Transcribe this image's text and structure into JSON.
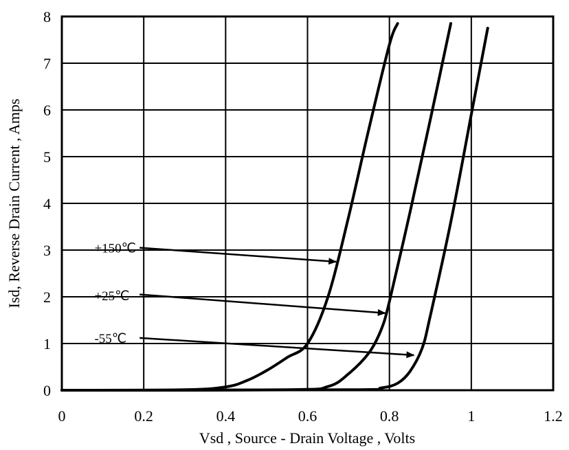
{
  "chart_data": {
    "type": "line",
    "title": "",
    "xlabel": "Vsd , Source - Drain Voltage , Volts",
    "ylabel": "Isd, Reverse Drain Current , Amps",
    "xlim": [
      0,
      1.2
    ],
    "ylim": [
      0,
      8
    ],
    "grid": true,
    "x_ticks": [
      "0",
      "0.2",
      "0.4",
      "0.6",
      "0.8",
      "1",
      "1.2"
    ],
    "y_ticks": [
      "0",
      "1",
      "2",
      "3",
      "4",
      "5",
      "6",
      "7",
      "8"
    ],
    "series": [
      {
        "name": "+150℃",
        "x": [
          0.0,
          0.3,
          0.4,
          0.45,
          0.5,
          0.55,
          0.6,
          0.65,
          0.7,
          0.75,
          0.8,
          0.82
        ],
        "y": [
          0.0,
          0.01,
          0.07,
          0.2,
          0.42,
          0.7,
          1.0,
          2.0,
          3.7,
          5.6,
          7.4,
          7.85
        ]
      },
      {
        "name": "+25℃",
        "x": [
          0.0,
          0.55,
          0.65,
          0.7,
          0.75,
          0.78,
          0.8,
          0.85,
          0.9,
          0.95
        ],
        "y": [
          0.0,
          0.01,
          0.08,
          0.35,
          0.8,
          1.3,
          1.9,
          3.8,
          5.8,
          7.85
        ]
      },
      {
        "name": "-55℃",
        "x": [
          0.0,
          0.7,
          0.78,
          0.82,
          0.85,
          0.88,
          0.9,
          0.95,
          1.0,
          1.04
        ],
        "y": [
          0.0,
          0.01,
          0.05,
          0.15,
          0.4,
          0.9,
          1.6,
          3.6,
          5.9,
          7.75
        ]
      }
    ],
    "annotations": [
      {
        "text": "+150℃",
        "label_at": [
          0.13,
          3.05
        ],
        "arrow_from": [
          0.19,
          3.05
        ],
        "arrow_to": [
          0.67,
          2.75
        ]
      },
      {
        "text": "+25℃",
        "label_at": [
          0.13,
          2.03
        ],
        "arrow_from": [
          0.19,
          2.05
        ],
        "arrow_to": [
          0.79,
          1.65
        ]
      },
      {
        "text": "-55℃",
        "label_at": [
          0.13,
          1.12
        ],
        "arrow_from": [
          0.19,
          1.12
        ],
        "arrow_to": [
          0.86,
          0.75
        ]
      }
    ]
  }
}
